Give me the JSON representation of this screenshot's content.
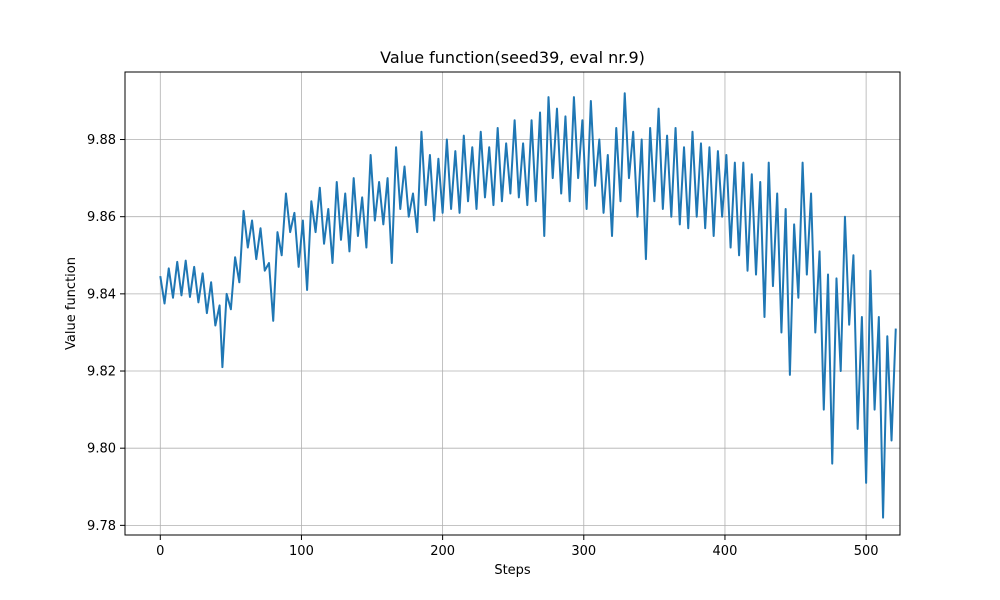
{
  "chart_data": {
    "type": "line",
    "title": "Value function(seed39, eval nr.9)",
    "xlabel": "Steps",
    "ylabel": "Value function",
    "xlim": [
      -25,
      524
    ],
    "ylim": [
      9.7775,
      9.8975
    ],
    "xticks": [
      0,
      100,
      200,
      300,
      400,
      500
    ],
    "yticks": [
      9.78,
      9.8,
      9.82,
      9.84,
      9.86,
      9.88
    ],
    "ytick_labels": [
      "9.78",
      "9.80",
      "9.82",
      "9.84",
      "9.86",
      "9.88"
    ],
    "grid": true,
    "line_color": "#1f77b4",
    "series": [
      {
        "points": [
          [
            0,
            9.8446
          ],
          [
            3,
            9.8375
          ],
          [
            6,
            9.8466
          ],
          [
            9,
            9.839
          ],
          [
            12,
            9.8483
          ],
          [
            15,
            9.8396
          ],
          [
            18,
            9.8486
          ],
          [
            21,
            9.8392
          ],
          [
            24,
            9.847
          ],
          [
            27,
            9.8378
          ],
          [
            30,
            9.8453
          ],
          [
            33,
            9.835
          ],
          [
            36,
            9.843
          ],
          [
            39,
            9.8318
          ],
          [
            42,
            9.837
          ],
          [
            44,
            9.821
          ],
          [
            47,
            9.84
          ],
          [
            50,
            9.836
          ],
          [
            53,
            9.8495
          ],
          [
            56,
            9.843
          ],
          [
            59,
            9.8615
          ],
          [
            62,
            9.852
          ],
          [
            65,
            9.859
          ],
          [
            68,
            9.849
          ],
          [
            71,
            9.857
          ],
          [
            74,
            9.846
          ],
          [
            77,
            9.848
          ],
          [
            80,
            9.833
          ],
          [
            83,
            9.856
          ],
          [
            86,
            9.85
          ],
          [
            89,
            9.866
          ],
          [
            92,
            9.856
          ],
          [
            95,
            9.861
          ],
          [
            98,
            9.847
          ],
          [
            101,
            9.859
          ],
          [
            104,
            9.841
          ],
          [
            107,
            9.864
          ],
          [
            110,
            9.856
          ],
          [
            113,
            9.8675
          ],
          [
            116,
            9.853
          ],
          [
            119,
            9.862
          ],
          [
            122,
            9.848
          ],
          [
            125,
            9.869
          ],
          [
            128,
            9.854
          ],
          [
            131,
            9.866
          ],
          [
            134,
            9.851
          ],
          [
            137,
            9.87
          ],
          [
            140,
            9.855
          ],
          [
            143,
            9.865
          ],
          [
            146,
            9.852
          ],
          [
            149,
            9.876
          ],
          [
            152,
            9.859
          ],
          [
            155,
            9.869
          ],
          [
            158,
            9.858
          ],
          [
            161,
            9.87
          ],
          [
            164,
            9.848
          ],
          [
            167,
            9.878
          ],
          [
            170,
            9.862
          ],
          [
            173,
            9.873
          ],
          [
            176,
            9.86
          ],
          [
            179,
            9.866
          ],
          [
            182,
            9.856
          ],
          [
            185,
            9.882
          ],
          [
            188,
            9.863
          ],
          [
            191,
            9.876
          ],
          [
            194,
            9.859
          ],
          [
            197,
            9.875
          ],
          [
            200,
            9.861
          ],
          [
            203,
            9.88
          ],
          [
            206,
            9.862
          ],
          [
            209,
            9.877
          ],
          [
            212,
            9.861
          ],
          [
            215,
            9.881
          ],
          [
            218,
            9.864
          ],
          [
            221,
            9.878
          ],
          [
            224,
            9.862
          ],
          [
            227,
            9.882
          ],
          [
            230,
            9.865
          ],
          [
            233,
            9.878
          ],
          [
            236,
            9.863
          ],
          [
            239,
            9.883
          ],
          [
            242,
            9.864
          ],
          [
            245,
            9.879
          ],
          [
            248,
            9.866
          ],
          [
            251,
            9.885
          ],
          [
            254,
            9.865
          ],
          [
            257,
            9.879
          ],
          [
            260,
            9.863
          ],
          [
            263,
            9.885
          ],
          [
            266,
            9.864
          ],
          [
            269,
            9.887
          ],
          [
            272,
            9.855
          ],
          [
            275,
            9.891
          ],
          [
            278,
            9.87
          ],
          [
            281,
            9.888
          ],
          [
            284,
            9.866
          ],
          [
            287,
            9.886
          ],
          [
            290,
            9.864
          ],
          [
            293,
            9.891
          ],
          [
            296,
            9.87
          ],
          [
            299,
            9.885
          ],
          [
            302,
            9.862
          ],
          [
            305,
            9.89
          ],
          [
            308,
            9.868
          ],
          [
            311,
            9.88
          ],
          [
            314,
            9.861
          ],
          [
            317,
            9.876
          ],
          [
            320,
            9.855
          ],
          [
            323,
            9.883
          ],
          [
            326,
            9.864
          ],
          [
            329,
            9.892
          ],
          [
            332,
            9.87
          ],
          [
            335,
            9.882
          ],
          [
            338,
            9.86
          ],
          [
            341,
            9.88
          ],
          [
            344,
            9.849
          ],
          [
            347,
            9.883
          ],
          [
            350,
            9.864
          ],
          [
            353,
            9.888
          ],
          [
            356,
            9.862
          ],
          [
            359,
            9.881
          ],
          [
            362,
            9.86
          ],
          [
            365,
            9.883
          ],
          [
            368,
            9.858
          ],
          [
            371,
            9.878
          ],
          [
            374,
            9.857
          ],
          [
            377,
            9.882
          ],
          [
            380,
            9.86
          ],
          [
            383,
            9.879
          ],
          [
            386,
            9.857
          ],
          [
            389,
            9.878
          ],
          [
            392,
            9.855
          ],
          [
            395,
            9.877
          ],
          [
            398,
            9.86
          ],
          [
            401,
            9.876
          ],
          [
            404,
            9.852
          ],
          [
            407,
            9.874
          ],
          [
            410,
            9.85
          ],
          [
            413,
            9.874
          ],
          [
            416,
            9.846
          ],
          [
            419,
            9.871
          ],
          [
            422,
            9.845
          ],
          [
            425,
            9.869
          ],
          [
            428,
            9.834
          ],
          [
            431,
            9.874
          ],
          [
            434,
            9.842
          ],
          [
            437,
            9.866
          ],
          [
            440,
            9.83
          ],
          [
            443,
            9.862
          ],
          [
            446,
            9.819
          ],
          [
            449,
            9.858
          ],
          [
            452,
            9.839
          ],
          [
            455,
            9.874
          ],
          [
            458,
            9.845
          ],
          [
            461,
            9.866
          ],
          [
            464,
            9.83
          ],
          [
            467,
            9.851
          ],
          [
            470,
            9.81
          ],
          [
            473,
            9.845
          ],
          [
            476,
            9.796
          ],
          [
            479,
            9.844
          ],
          [
            482,
            9.82
          ],
          [
            485,
            9.86
          ],
          [
            488,
            9.832
          ],
          [
            491,
            9.85
          ],
          [
            494,
            9.805
          ],
          [
            497,
            9.834
          ],
          [
            500,
            9.791
          ],
          [
            503,
            9.846
          ],
          [
            506,
            9.81
          ],
          [
            509,
            9.834
          ],
          [
            512,
            9.782
          ],
          [
            515,
            9.829
          ],
          [
            518,
            9.802
          ],
          [
            521,
            9.831
          ]
        ]
      }
    ]
  }
}
